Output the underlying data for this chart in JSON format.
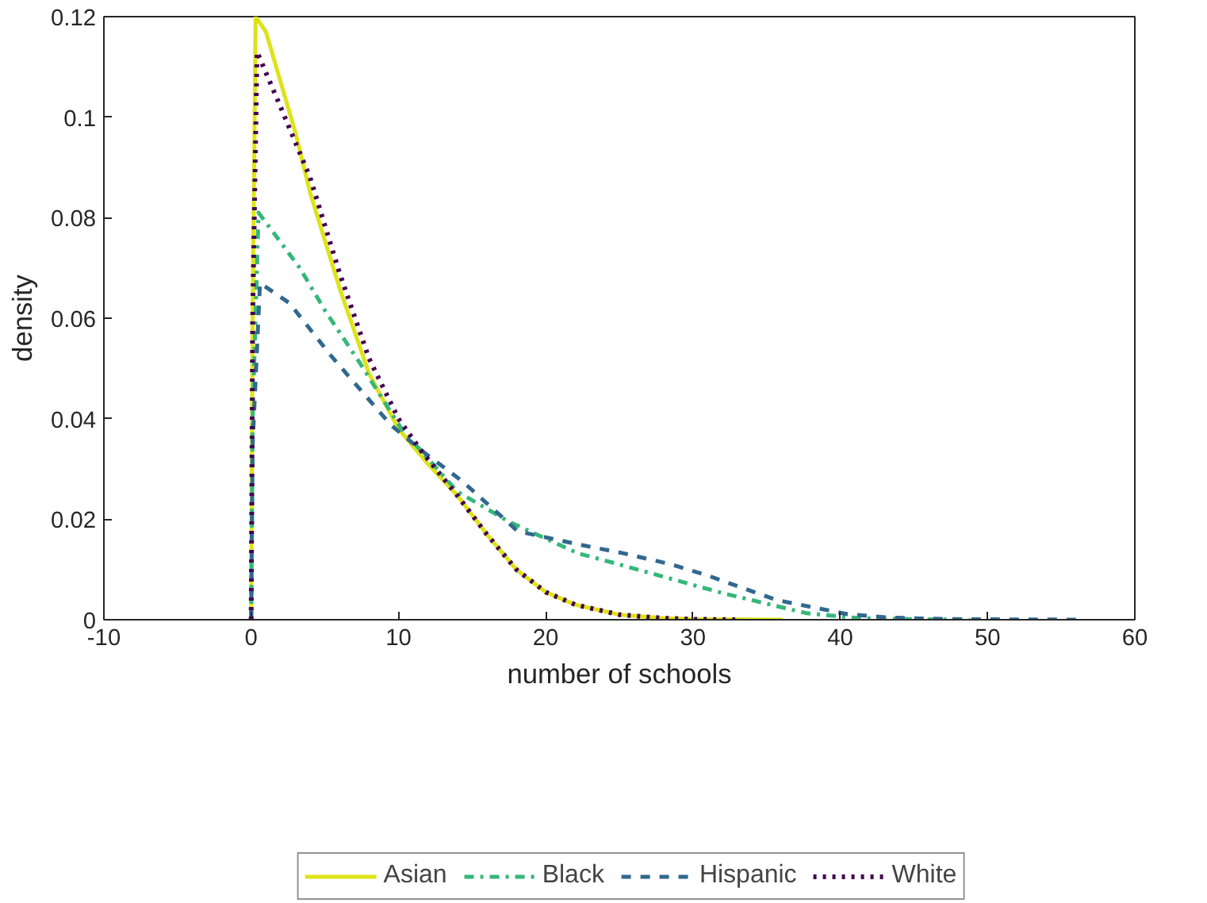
{
  "chart_data": {
    "type": "line",
    "xlabel": "number of schools",
    "ylabel": "density",
    "xlim": [
      -10,
      60
    ],
    "ylim": [
      0,
      0.12
    ],
    "xticks": [
      -10,
      0,
      10,
      20,
      30,
      40,
      50,
      60
    ],
    "yticks": [
      0,
      0.02,
      0.04,
      0.06,
      0.08,
      0.1,
      0.12
    ],
    "grid": false,
    "legend": "bottom",
    "marker": "none",
    "series": [
      {
        "name": "Asian",
        "color": "#dde318",
        "line_style": "solid",
        "x": [
          0,
          0.1,
          0.3,
          1,
          2,
          3,
          4,
          6,
          8,
          10,
          12,
          14,
          16,
          18,
          20,
          22,
          25,
          28,
          30,
          36
        ],
        "values": [
          0,
          0.06,
          0.12,
          0.117,
          0.107,
          0.097,
          0.085,
          0.066,
          0.049,
          0.038,
          0.031,
          0.0247,
          0.017,
          0.01,
          0.0055,
          0.003,
          0.001,
          0.0003,
          0.0001,
          0
        ]
      },
      {
        "name": "Black",
        "color": "#35b779",
        "line_style": "dashdot",
        "x": [
          0,
          0.1,
          0.5,
          3.3,
          5,
          7.4,
          10.2,
          11.6,
          14,
          17.5,
          22.2,
          24,
          28.8,
          32,
          37.7,
          41.3,
          45,
          48.8
        ],
        "values": [
          0,
          0.04,
          0.081,
          0.07,
          0.0616,
          0.051,
          0.038,
          0.0334,
          0.0255,
          0.0195,
          0.0132,
          0.0118,
          0.0079,
          0.0053,
          0.0013,
          0.0003,
          0.0001,
          0
        ]
      },
      {
        "name": "Hispanic",
        "color": "#31688e",
        "line_style": "dashed",
        "x": [
          0,
          0.1,
          0.6,
          2.6,
          5.4,
          9.5,
          11.6,
          14.4,
          18.1,
          22.2,
          25.3,
          28.4,
          30.9,
          35.7,
          40.5,
          43.4,
          48,
          56.5
        ],
        "values": [
          0,
          0.035,
          0.067,
          0.063,
          0.0526,
          0.0387,
          0.0336,
          0.0274,
          0.0176,
          0.015,
          0.0132,
          0.0111,
          0.0089,
          0.0039,
          0.0011,
          0.0004,
          0.0001,
          0
        ]
      },
      {
        "name": "White",
        "color": "#440154",
        "line_style": "dotted",
        "x": [
          0,
          0.1,
          0.4,
          2,
          4,
          6,
          8,
          10,
          11.6,
          14,
          16,
          18,
          20,
          22,
          25,
          28,
          30,
          33.3
        ],
        "values": [
          0,
          0.06,
          0.113,
          0.102,
          0.088,
          0.069,
          0.052,
          0.04,
          0.0334,
          0.0247,
          0.017,
          0.01,
          0.0055,
          0.003,
          0.001,
          0.0003,
          0.0001,
          0
        ]
      }
    ]
  }
}
